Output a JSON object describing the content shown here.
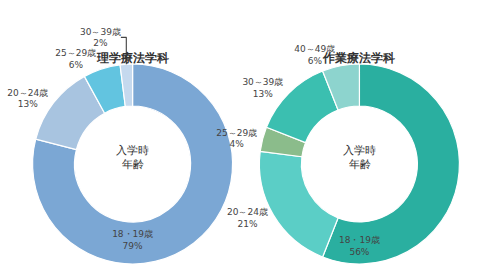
{
  "chart_data": [
    {
      "type": "pie",
      "title": "理学療法学科",
      "categories": [
        "18・19歳",
        "20～24歳",
        "25～29歳",
        "30～39歳"
      ],
      "values": [
        79,
        13,
        6,
        2
      ],
      "value_labels": [
        "79%",
        "13%",
        "6%",
        "2%"
      ],
      "colors": [
        "#7ba7d4",
        "#a8c4e0",
        "#62c4e0",
        "#c5d9ee"
      ],
      "annotations": [
        "入学時\n年齢"
      ]
    },
    {
      "type": "pie",
      "title": "作業療法学科",
      "categories": [
        "18・19歳",
        "20～24歳",
        "25～29歳",
        "30～39歳",
        "40～49歳"
      ],
      "values": [
        56,
        21,
        4,
        13,
        6
      ],
      "value_labels": [
        "56%",
        "21%",
        "4%",
        "13%",
        "6%"
      ],
      "colors": [
        "#2aafa0",
        "#5bcec6",
        "#8bbc8b",
        "#3bbfb0",
        "#8dd4ce"
      ],
      "annotations": [
        "入学時\n年齢"
      ]
    }
  ]
}
